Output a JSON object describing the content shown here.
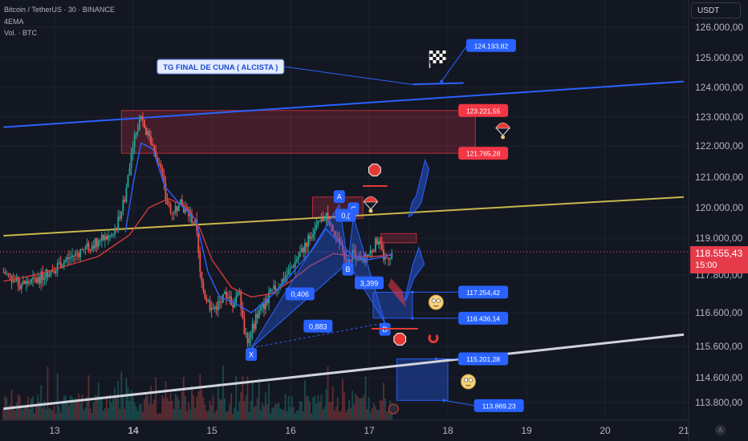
{
  "header": {
    "symbol_line": "Bitcoin / TetherUS · 30 · BINANCE",
    "indicator_line": "4EMA",
    "volume_line": "Vol. · BTC"
  },
  "currency_label": "USDT",
  "last_price": {
    "value": "118.555,43",
    "countdown": "15:00"
  },
  "auto_label": "A",
  "colors": {
    "background": "#131722",
    "up": "#26a69a",
    "down": "#ef5350",
    "blue_line": "#2962ff",
    "yellow_line": "#c9b74a",
    "white_line": "#d1d4dc",
    "label_blue": "#2962ff",
    "label_red": "#f23645"
  },
  "chart_data": {
    "type": "candlestick",
    "x_tick_labels": [
      "13",
      "14",
      "15",
      "16",
      "17",
      "18",
      "19",
      "20",
      "21"
    ],
    "y_tick_labels": [
      "126.000,00",
      "125.000,00",
      "124.000,00",
      "123.000,00",
      "122.000,00",
      "121.000,00",
      "120.000,00",
      "119.000,00",
      "117.800,00",
      "116.600,00",
      "115.600,00",
      "114.600,00",
      "113.800,00"
    ],
    "y_ticks": [
      126000,
      125000,
      124000,
      123000,
      122000,
      121000,
      120000,
      119000,
      117800,
      116600,
      115600,
      114600,
      113800
    ],
    "ylim": [
      113400,
      126600
    ],
    "xlim": [
      12.35,
      21.05
    ],
    "price_path": [
      [
        12.35,
        117.9
      ],
      [
        12.55,
        117.5
      ],
      [
        12.75,
        117.6
      ],
      [
        12.95,
        117.95
      ],
      [
        13.15,
        118.3
      ],
      [
        13.35,
        118.6
      ],
      [
        13.55,
        118.9
      ],
      [
        13.75,
        119.1
      ],
      [
        13.9,
        120.4
      ],
      [
        13.95,
        121.4
      ],
      [
        14.0,
        122.2
      ],
      [
        14.05,
        122.5
      ],
      [
        14.1,
        123.1
      ],
      [
        14.15,
        122.6
      ],
      [
        14.25,
        122.0
      ],
      [
        14.35,
        121.3
      ],
      [
        14.42,
        120.2
      ],
      [
        14.5,
        119.9
      ],
      [
        14.6,
        120.1
      ],
      [
        14.7,
        119.8
      ],
      [
        14.8,
        119.4
      ],
      [
        14.85,
        117.8
      ],
      [
        14.9,
        117.2
      ],
      [
        15.0,
        116.7
      ],
      [
        15.1,
        116.9
      ],
      [
        15.2,
        117.2
      ],
      [
        15.25,
        116.8
      ],
      [
        15.35,
        117.4
      ],
      [
        15.4,
        116.2
      ],
      [
        15.47,
        115.7
      ],
      [
        15.55,
        116.4
      ],
      [
        15.65,
        116.8
      ],
      [
        15.75,
        117.2
      ],
      [
        15.85,
        117.5
      ],
      [
        15.95,
        117.8
      ],
      [
        16.05,
        118.2
      ],
      [
        16.15,
        118.6
      ],
      [
        16.25,
        119.1
      ],
      [
        16.35,
        119.4
      ],
      [
        16.45,
        119.8
      ],
      [
        16.55,
        119.0
      ],
      [
        16.65,
        118.7
      ],
      [
        16.72,
        118.0
      ],
      [
        16.8,
        118.6
      ],
      [
        16.9,
        118.2
      ],
      [
        17.0,
        118.5
      ],
      [
        17.1,
        118.9
      ],
      [
        17.2,
        118.3
      ],
      [
        17.3,
        118.55
      ]
    ],
    "ema_path": [
      [
        12.35,
        117.6
      ],
      [
        12.75,
        117.8
      ],
      [
        13.15,
        118.1
      ],
      [
        13.55,
        118.4
      ],
      [
        13.95,
        119.1
      ],
      [
        14.2,
        120.0
      ],
      [
        14.45,
        120.3
      ],
      [
        14.7,
        120.0
      ],
      [
        14.85,
        119.3
      ],
      [
        15.0,
        118.3
      ],
      [
        15.25,
        117.4
      ],
      [
        15.5,
        117.1
      ],
      [
        15.75,
        117.2
      ],
      [
        16.0,
        117.6
      ],
      [
        16.25,
        118.1
      ],
      [
        16.55,
        118.5
      ],
      [
        16.8,
        118.4
      ],
      [
        17.05,
        118.4
      ],
      [
        17.3,
        118.45
      ]
    ],
    "ema_fast_path": [
      [
        13.9,
        119.2
      ],
      [
        14.0,
        120.8
      ],
      [
        14.1,
        122.1
      ],
      [
        14.25,
        121.9
      ],
      [
        14.4,
        120.7
      ],
      [
        14.6,
        120.1
      ],
      [
        14.8,
        119.6
      ],
      [
        14.95,
        117.9
      ],
      [
        15.1,
        117.1
      ],
      [
        15.3,
        116.9
      ],
      [
        15.5,
        116.6
      ],
      [
        15.7,
        117.0
      ],
      [
        15.9,
        117.5
      ],
      [
        16.1,
        118.1
      ],
      [
        16.3,
        118.7
      ],
      [
        16.45,
        119.3
      ],
      [
        16.6,
        118.9
      ],
      [
        16.8,
        118.4
      ],
      [
        17.0,
        118.3
      ],
      [
        17.2,
        118.4
      ],
      [
        17.3,
        118.5
      ]
    ],
    "trendlines": [
      {
        "name": "upper-channel",
        "from": [
          12.35,
          122.65
        ],
        "to": [
          21.0,
          124.2
        ]
      },
      {
        "name": "middle-line",
        "from": [
          12.35,
          119.08
        ],
        "to": [
          21.0,
          120.35
        ]
      },
      {
        "name": "lower-channel",
        "from": [
          12.35,
          113.6
        ],
        "to": [
          21.0,
          115.95
        ]
      },
      {
        "name": "upper-connector",
        "from": [
          17.55,
          124.1
        ],
        "to": [
          18.2,
          124.15
        ]
      }
    ],
    "zones": [
      {
        "name": "resistance-zone",
        "x": [
          13.85,
          18.35
        ],
        "y": [
          121.765,
          123.222
        ],
        "color": "#f23645"
      },
      {
        "name": "c-zone",
        "x": [
          16.28,
          16.92
        ],
        "y": [
          119.65,
          120.35
        ],
        "color": "#f23645"
      },
      {
        "name": "small-red-zone",
        "x": [
          17.15,
          17.6
        ],
        "y": [
          118.85,
          119.15
        ],
        "color": "#f23645"
      },
      {
        "name": "d-zone",
        "x": [
          17.05,
          17.55
        ],
        "y": [
          116.436,
          117.254
        ],
        "color": "#2962ff"
      },
      {
        "name": "target-zone",
        "x": [
          17.35,
          18.0
        ],
        "y": [
          113.869,
          115.201
        ],
        "color": "#2962ff"
      }
    ],
    "harmonic_points": [
      {
        "label": "X",
        "x": 15.5,
        "y": 115.55
      },
      {
        "label": "A",
        "x": 16.62,
        "y": 120.1
      },
      {
        "label": "B",
        "x": 16.73,
        "y": 118.2
      },
      {
        "label": "C",
        "x": 16.8,
        "y": 119.7
      },
      {
        "label": "D",
        "x": 17.2,
        "y": 116.3
      }
    ],
    "ratios": [
      {
        "text": "0,406",
        "x": 16.12,
        "y": 117.2
      },
      {
        "text": "0,883",
        "x": 16.35,
        "y": 116.2
      },
      {
        "text": "3,399",
        "x": 17.0,
        "y": 117.55
      },
      {
        "text": "0,(",
        "x": 16.7,
        "y": 119.75
      }
    ],
    "price_labels": [
      {
        "text": "124.193,82",
        "value": 124193.82,
        "x": 18.55,
        "y": 125.4,
        "color": "blue"
      },
      {
        "text": "123.221,55",
        "value": 123221.55,
        "x": 18.45,
        "y": 123.222,
        "color": "red"
      },
      {
        "text": "121.765,28",
        "value": 121765.28,
        "x": 18.45,
        "y": 121.765,
        "color": "red"
      },
      {
        "text": "117.254,42",
        "value": 117254.42,
        "x": 18.45,
        "y": 117.254,
        "color": "blue"
      },
      {
        "text": "116.436,14",
        "value": 116436.14,
        "x": 18.45,
        "y": 116.436,
        "color": "blue"
      },
      {
        "text": "115.201,28",
        "value": 115201.28,
        "x": 18.45,
        "y": 115.201,
        "color": "blue"
      },
      {
        "text": "113.869,23",
        "value": 113869.23,
        "x": 18.65,
        "y": 113.7,
        "color": "blue"
      }
    ],
    "annotation": {
      "text": "TG FINAL  DE CUNA ( ALCISTA )",
      "x": 15.1,
      "y": 124.7
    },
    "volume_max_fraction": 0.55
  }
}
